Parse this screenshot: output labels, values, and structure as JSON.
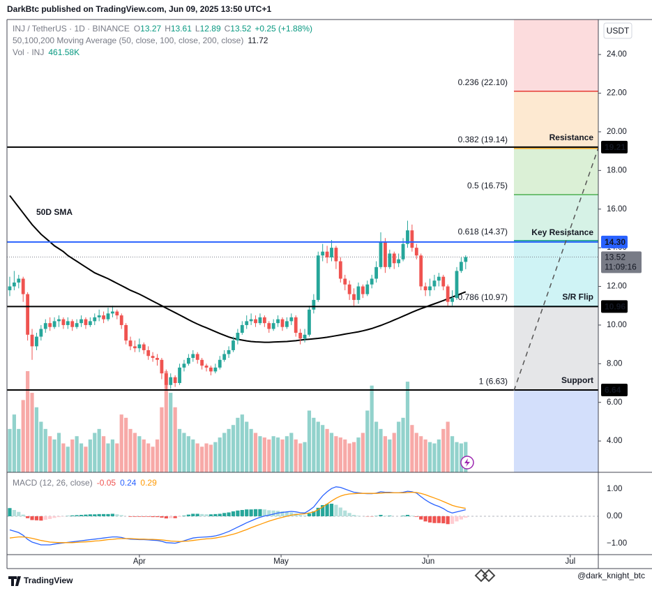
{
  "header": "DarkBtc published on TradingView.com, Jun 09, 2025 13:50 UTC+1",
  "watermark": "@dark_knight_btc",
  "footer": "TradingView",
  "chart_data": {
    "type": "candlestick",
    "symbol": "INJ / TetherUS · 1D · BINANCE",
    "ohlc_keys": [
      "O",
      "H",
      "L",
      "C"
    ],
    "change": "+0.25 (+1.88%)",
    "currency": "USDT",
    "countdown": "11:09:16",
    "up_color": "#26a69a",
    "down_color": "#ef5350",
    "open": [
      11.8,
      12.0,
      12.2,
      12.4,
      11.6,
      9.5,
      8.9,
      9.4,
      9.8,
      10.1,
      9.9,
      10.2,
      10.3,
      10.0,
      10.2,
      9.9,
      10.1,
      10.3,
      10.0,
      10.2,
      10.4,
      10.5,
      10.3,
      10.6,
      10.7,
      10.5,
      10.0,
      9.2,
      8.9,
      8.8,
      9.0,
      8.7,
      8.4,
      8.3,
      8.2,
      7.5,
      6.9,
      7.3,
      7.0,
      7.8,
      8.0,
      8.3,
      8.5,
      8.2,
      7.9,
      7.8,
      7.6,
      7.8,
      8.2,
      8.5,
      8.7,
      9.2,
      9.6,
      10.0,
      10.2,
      10.3,
      10.1,
      10.4,
      10.1,
      9.8,
      10.1,
      10.3,
      9.9,
      10.2,
      10.4,
      9.6,
      9.3,
      9.5,
      10.8,
      11.3,
      13.6,
      13.8,
      13.5,
      14.0,
      13.3,
      12.4,
      12.1,
      11.6,
      11.3,
      12.0,
      11.6,
      12.1,
      12.4,
      13.0,
      14.3,
      13.0,
      13.7,
      13.2,
      13.4,
      14.2,
      14.9,
      14.0,
      13.6,
      12.0,
      11.8,
      12.0,
      12.3,
      12.5,
      12.0,
      11.2,
      11.4,
      12.8,
      13.27
    ],
    "high": [
      12.5,
      12.8,
      12.6,
      12.5,
      11.7,
      9.8,
      9.6,
      10.0,
      10.3,
      10.4,
      10.4,
      10.5,
      10.4,
      10.4,
      10.3,
      10.3,
      10.5,
      10.4,
      10.4,
      10.6,
      10.8,
      10.7,
      10.9,
      11.0,
      10.8,
      10.6,
      10.1,
      9.4,
      9.2,
      9.3,
      9.1,
      8.9,
      8.6,
      8.5,
      8.3,
      7.7,
      7.5,
      7.4,
      8.0,
      8.2,
      8.5,
      8.7,
      8.6,
      8.3,
      8.0,
      7.9,
      8.0,
      8.4,
      8.7,
      8.9,
      9.4,
      9.8,
      10.2,
      10.5,
      10.6,
      10.5,
      10.6,
      10.5,
      10.2,
      10.3,
      10.5,
      10.4,
      10.4,
      10.6,
      10.5,
      9.8,
      9.8,
      11.0,
      11.6,
      13.8,
      14.2,
      14.1,
      14.4,
      14.1,
      13.5,
      12.6,
      12.3,
      11.9,
      12.2,
      12.1,
      12.3,
      12.6,
      13.3,
      14.8,
      14.5,
      13.9,
      13.8,
      13.7,
      14.5,
      15.4,
      15.2,
      14.2,
      13.7,
      12.2,
      12.4,
      12.6,
      12.7,
      12.6,
      12.1,
      11.8,
      13.0,
      13.5,
      13.61
    ],
    "low": [
      11.5,
      11.8,
      11.9,
      11.2,
      9.2,
      8.2,
      8.7,
      9.2,
      9.6,
      9.7,
      9.8,
      9.9,
      9.8,
      9.8,
      9.7,
      9.8,
      9.9,
      9.8,
      9.9,
      10.0,
      10.2,
      10.1,
      10.2,
      10.4,
      10.3,
      9.8,
      9.0,
      8.7,
      8.6,
      8.6,
      8.5,
      8.2,
      8.1,
      7.9,
      7.2,
      6.6,
      6.7,
      6.8,
      6.9,
      7.6,
      7.9,
      8.1,
      8.0,
      7.7,
      7.6,
      7.4,
      7.5,
      7.7,
      8.1,
      8.3,
      8.6,
      9.0,
      9.5,
      9.8,
      10.0,
      9.9,
      10.0,
      9.9,
      9.6,
      9.7,
      9.9,
      9.7,
      9.8,
      10.0,
      9.4,
      9.0,
      9.1,
      9.4,
      10.6,
      11.2,
      13.3,
      13.2,
      13.3,
      12.9,
      12.2,
      11.8,
      11.3,
      11.0,
      11.1,
      11.4,
      11.5,
      11.9,
      12.2,
      12.9,
      12.7,
      12.9,
      12.9,
      13.0,
      13.3,
      14.0,
      13.8,
      13.4,
      11.8,
      11.5,
      11.5,
      11.8,
      12.0,
      11.8,
      11.0,
      11.0,
      11.3,
      12.7,
      12.89
    ],
    "close": [
      12.0,
      12.2,
      12.4,
      11.6,
      9.5,
      8.9,
      9.4,
      9.8,
      10.1,
      9.9,
      10.2,
      10.3,
      10.0,
      10.2,
      9.9,
      10.1,
      10.3,
      10.0,
      10.2,
      10.4,
      10.5,
      10.3,
      10.6,
      10.7,
      10.5,
      10.0,
      9.2,
      8.9,
      8.8,
      9.0,
      8.7,
      8.4,
      8.3,
      8.2,
      7.5,
      6.9,
      7.3,
      7.0,
      7.8,
      8.0,
      8.3,
      8.5,
      8.2,
      7.9,
      7.8,
      7.6,
      7.8,
      8.2,
      8.5,
      8.7,
      9.2,
      9.6,
      10.0,
      10.2,
      10.3,
      10.1,
      10.4,
      10.1,
      9.8,
      10.1,
      10.3,
      9.9,
      10.2,
      10.4,
      9.6,
      9.3,
      9.5,
      10.8,
      11.3,
      13.6,
      13.8,
      13.5,
      14.0,
      13.3,
      12.4,
      12.1,
      11.6,
      11.3,
      12.0,
      11.6,
      12.1,
      12.4,
      13.0,
      14.3,
      13.0,
      13.7,
      13.2,
      13.4,
      14.2,
      14.9,
      14.0,
      13.6,
      12.0,
      11.8,
      12.0,
      12.3,
      12.5,
      12.0,
      11.2,
      11.4,
      12.8,
      13.27,
      13.52
    ],
    "xlim": [
      -2.18,
      131.67
    ],
    "xticks": [
      {
        "value": 29,
        "label": "Apr"
      },
      {
        "value": 60.7,
        "label": "May"
      },
      {
        "value": 93.6,
        "label": "Jun"
      },
      {
        "value": 125.4,
        "label": "Jul"
      }
    ],
    "ylim": [
      2.38,
      25.81
    ],
    "yticks": [
      {
        "value": 4,
        "label": "4.00"
      },
      {
        "value": 6,
        "label": "6.00"
      },
      {
        "value": 8,
        "label": "8.00"
      },
      {
        "value": 10,
        "label": "10.00"
      },
      {
        "value": 12,
        "label": "12.00"
      },
      {
        "value": 14,
        "label": "14.00"
      },
      {
        "value": 16,
        "label": "16.00"
      },
      {
        "value": 18,
        "label": "18.00"
      },
      {
        "value": 20,
        "label": "20.00"
      },
      {
        "value": 22,
        "label": "22.00"
      },
      {
        "value": 24,
        "label": "24.00"
      }
    ],
    "moving_average": {
      "name": "50,100,200 Moving Average (50, close, 100, close, 200, close)",
      "annotation": "50D SMA",
      "color": "#000000",
      "values": [
        16.7,
        16.4,
        16.1,
        15.8,
        15.5,
        15.2,
        14.95,
        14.7,
        14.5,
        14.3,
        14.1,
        13.95,
        13.8,
        13.6,
        13.45,
        13.3,
        13.15,
        13.0,
        12.85,
        12.7,
        12.6,
        12.5,
        12.4,
        12.28,
        12.16,
        12.04,
        11.92,
        11.8,
        11.7,
        11.6,
        11.48,
        11.36,
        11.24,
        11.12,
        11.0,
        10.88,
        10.76,
        10.64,
        10.52,
        10.4,
        10.28,
        10.16,
        10.05,
        9.95,
        9.86,
        9.76,
        9.66,
        9.56,
        9.47,
        9.38,
        9.31,
        9.26,
        9.22,
        9.18,
        9.15,
        9.13,
        9.12,
        9.11,
        9.11,
        9.12,
        9.13,
        9.14,
        9.15,
        9.17,
        9.19,
        9.22,
        9.25,
        9.27,
        9.29,
        9.31,
        9.34,
        9.37,
        9.41,
        9.45,
        9.49,
        9.53,
        9.57,
        9.61,
        9.65,
        9.7,
        9.76,
        9.82,
        9.9,
        9.98,
        10.07,
        10.16,
        10.26,
        10.36,
        10.46,
        10.56,
        10.66,
        10.76,
        10.85,
        10.93,
        11.02,
        11.1,
        11.18,
        11.27,
        11.36,
        11.45,
        11.54,
        11.63,
        11.72
      ]
    },
    "volume": {
      "name": "Vol · INJ",
      "last_label": "461.58K",
      "values": [
        660,
        880,
        660,
        1100,
        1540,
        1210,
        990,
        770,
        660,
        550,
        500,
        600,
        440,
        390,
        500,
        550,
        440,
        390,
        500,
        600,
        660,
        550,
        440,
        500,
        440,
        880,
        830,
        660,
        600,
        550,
        500,
        440,
        390,
        500,
        990,
        1540,
        1210,
        990,
        660,
        600,
        550,
        500,
        440,
        390,
        440,
        420,
        460,
        530,
        600,
        660,
        720,
        830,
        880,
        770,
        660,
        600,
        550,
        530,
        500,
        550,
        530,
        500,
        550,
        600,
        500,
        440,
        460,
        940,
        830,
        770,
        720,
        660,
        600,
        550,
        530,
        500,
        440,
        460,
        530,
        600,
        940,
        1320,
        770,
        660,
        550,
        500,
        600,
        770,
        830,
        1380,
        720,
        600,
        550,
        500,
        460,
        440,
        500,
        660,
        770,
        550,
        460,
        440,
        461.58
      ]
    },
    "macd": {
      "name": "MACD (12, 26, close)",
      "ylim": [
        -1.41,
        1.46
      ],
      "yticks": [
        {
          "value": 1,
          "label": "1.00"
        },
        {
          "value": 0,
          "label": "0.00"
        },
        {
          "value": -1,
          "label": "−1.00"
        }
      ],
      "macd_line": {
        "color": "#2962ff",
        "values": [
          -0.5,
          -0.55,
          -0.6,
          -0.7,
          -0.85,
          -0.95,
          -1.0,
          -1.05,
          -1.05,
          -1.05,
          -1.02,
          -1.0,
          -0.98,
          -0.96,
          -0.94,
          -0.92,
          -0.9,
          -0.88,
          -0.86,
          -0.84,
          -0.82,
          -0.8,
          -0.78,
          -0.76,
          -0.76,
          -0.78,
          -0.82,
          -0.84,
          -0.85,
          -0.86,
          -0.86,
          -0.87,
          -0.88,
          -0.89,
          -0.92,
          -0.97,
          -0.98,
          -0.99,
          -0.95,
          -0.9,
          -0.85,
          -0.8,
          -0.78,
          -0.77,
          -0.76,
          -0.75,
          -0.72,
          -0.68,
          -0.62,
          -0.56,
          -0.48,
          -0.4,
          -0.32,
          -0.24,
          -0.17,
          -0.1,
          -0.04,
          0.01,
          0.04,
          0.08,
          0.12,
          0.14,
          0.16,
          0.18,
          0.16,
          0.13,
          0.12,
          0.22,
          0.34,
          0.55,
          0.75,
          0.9,
          1.02,
          1.08,
          1.06,
          1.0,
          0.94,
          0.88,
          0.86,
          0.84,
          0.83,
          0.83,
          0.85,
          0.9,
          0.88,
          0.88,
          0.86,
          0.86,
          0.88,
          0.92,
          0.9,
          0.85,
          0.72,
          0.6,
          0.5,
          0.42,
          0.36,
          0.28,
          0.18,
          0.12,
          0.16,
          0.2,
          0.24
        ]
      },
      "signal_line": {
        "color": "#ff9800",
        "values": [
          -0.8,
          -0.78,
          -0.76,
          -0.76,
          -0.78,
          -0.81,
          -0.85,
          -0.89,
          -0.92,
          -0.95,
          -0.96,
          -0.97,
          -0.97,
          -0.97,
          -0.97,
          -0.96,
          -0.95,
          -0.94,
          -0.93,
          -0.91,
          -0.9,
          -0.88,
          -0.86,
          -0.85,
          -0.83,
          -0.82,
          -0.82,
          -0.82,
          -0.83,
          -0.84,
          -0.84,
          -0.85,
          -0.85,
          -0.86,
          -0.87,
          -0.89,
          -0.91,
          -0.92,
          -0.93,
          -0.92,
          -0.91,
          -0.89,
          -0.87,
          -0.85,
          -0.83,
          -0.82,
          -0.8,
          -0.77,
          -0.74,
          -0.7,
          -0.66,
          -0.61,
          -0.55,
          -0.49,
          -0.42,
          -0.36,
          -0.3,
          -0.24,
          -0.18,
          -0.13,
          -0.08,
          -0.04,
          0.0,
          0.04,
          0.06,
          0.08,
          0.09,
          0.12,
          0.16,
          0.24,
          0.34,
          0.45,
          0.56,
          0.66,
          0.74,
          0.79,
          0.82,
          0.83,
          0.84,
          0.84,
          0.84,
          0.84,
          0.84,
          0.85,
          0.86,
          0.86,
          0.86,
          0.86,
          0.86,
          0.87,
          0.88,
          0.87,
          0.84,
          0.79,
          0.73,
          0.67,
          0.61,
          0.54,
          0.47,
          0.4,
          0.35,
          0.32,
          0.29
        ]
      },
      "histogram": {
        "values": [
          0.3,
          0.23,
          0.16,
          0.06,
          -0.07,
          -0.14,
          -0.15,
          -0.16,
          -0.13,
          -0.1,
          -0.06,
          -0.03,
          -0.01,
          0.01,
          0.03,
          0.04,
          0.05,
          0.06,
          0.07,
          0.07,
          0.08,
          0.08,
          0.08,
          0.09,
          0.07,
          0.04,
          0.0,
          -0.02,
          -0.02,
          -0.02,
          -0.02,
          -0.02,
          -0.03,
          -0.03,
          -0.05,
          -0.08,
          -0.07,
          -0.07,
          -0.02,
          0.02,
          0.06,
          0.09,
          0.09,
          0.08,
          0.07,
          0.07,
          0.08,
          0.09,
          0.12,
          0.14,
          0.18,
          0.21,
          0.23,
          0.25,
          0.25,
          0.26,
          0.26,
          0.25,
          0.22,
          0.21,
          0.2,
          0.18,
          0.16,
          0.14,
          0.1,
          0.05,
          0.03,
          0.1,
          0.18,
          0.31,
          0.41,
          0.45,
          0.46,
          0.42,
          0.32,
          0.21,
          0.12,
          0.05,
          0.02,
          0.0,
          -0.01,
          -0.01,
          0.01,
          0.05,
          0.02,
          0.02,
          0.0,
          0.0,
          0.02,
          0.05,
          0.02,
          -0.02,
          -0.12,
          -0.19,
          -0.23,
          -0.25,
          -0.25,
          -0.26,
          -0.29,
          -0.28,
          -0.19,
          -0.12,
          -0.05
        ]
      }
    },
    "fib_top_fill": "#fcdcdd",
    "fib_levels": [
      {
        "label": "0.236 (22.10)",
        "value": 22.1,
        "color": "#e53935",
        "fill": "#fde9d1"
      },
      {
        "label": "0.382 (19.14)",
        "value": 19.14,
        "color": "#f5a623",
        "fill": "#dbf0d6"
      },
      {
        "label": "0.5 (16.75)",
        "value": 16.75,
        "color": "#4caf50",
        "fill": "#d6f2e6"
      },
      {
        "label": "0.618 (14.37)",
        "value": 14.37,
        "color": "#089981",
        "fill": "#cff3f5"
      },
      {
        "label": "0.786 (10.97)",
        "value": 10.97,
        "color": "#26a9b5",
        "fill": "#e5e6e8"
      },
      {
        "label": "1 (6.63)",
        "value": 6.63,
        "color": "#787b86",
        "fill": "#d3dffb"
      }
    ],
    "levels": [
      {
        "label": "Resistance",
        "value": 19.21,
        "price_label": "19.21",
        "color": "#000000"
      },
      {
        "label": "Key Resistance",
        "value": 14.3,
        "price_label": "14.30",
        "color": "#2962ff"
      },
      {
        "label": "S/R Flip",
        "value": 10.96,
        "price_label": "10.96",
        "color": "#000000"
      },
      {
        "label": "Support",
        "value": 6.64,
        "price_label": "6.64",
        "color": "#000000"
      }
    ]
  }
}
